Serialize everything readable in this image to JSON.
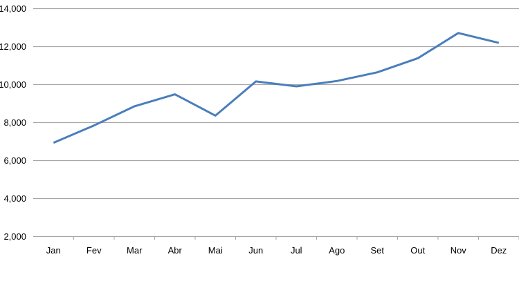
{
  "chart_data": {
    "type": "line",
    "title": "",
    "xlabel": "",
    "ylabel": "",
    "categories": [
      "Jan",
      "Fev",
      "Mar",
      "Abr",
      "Mai",
      "Jun",
      "Jul",
      "Ago",
      "Set",
      "Out",
      "Nov",
      "Dez"
    ],
    "series": [
      {
        "values": [
          6920,
          7830,
          8840,
          9470,
          8350,
          10150,
          9890,
          10170,
          10630,
          11370,
          12700,
          12180
        ],
        "color": "#4a7ebb"
      }
    ],
    "ylim": [
      2000,
      14000
    ],
    "yticks": [
      2000,
      4000,
      6000,
      8000,
      10000,
      12000,
      14000
    ],
    "ytick_labels": [
      "2,000",
      "4,000",
      "6,000",
      "8,000",
      "10,000",
      "12,000",
      "14,000"
    ],
    "grid": true,
    "gridline_color": "#a6a6a6",
    "legend": "none"
  }
}
